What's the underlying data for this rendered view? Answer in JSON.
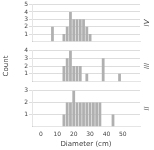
{
  "chart_data": [
    {
      "type": "bar",
      "title": "IV",
      "x": [
        7,
        14,
        16,
        18,
        20,
        22,
        24,
        26,
        28,
        30
      ],
      "values": [
        2,
        1,
        2,
        4,
        3,
        3,
        3,
        3,
        2,
        1
      ],
      "color": "#b0b0b0",
      "xlim": [
        0,
        55
      ],
      "xticks": [
        0,
        10,
        20,
        30,
        40,
        50
      ],
      "ylim": [
        0,
        5
      ],
      "yticks": [
        1,
        2,
        3,
        4,
        5
      ],
      "grid": true,
      "tick_labels": "y"
    },
    {
      "type": "bar",
      "title": "III",
      "ylabel": "Count",
      "x": [
        14,
        16,
        18,
        20,
        22,
        24,
        28,
        38,
        48
      ],
      "values": [
        2,
        3,
        4,
        2,
        2,
        2,
        1,
        3,
        1
      ],
      "color": "#b0b0b0",
      "xlim": [
        0,
        55
      ],
      "xticks": [
        0,
        10,
        20,
        30,
        40,
        50
      ],
      "ylim": [
        0,
        4
      ],
      "yticks": [
        1,
        2,
        3,
        4
      ],
      "grid": true,
      "tick_labels": "y"
    },
    {
      "type": "bar",
      "title": "II",
      "xlabel": "Diameter (cm)",
      "x": [
        14,
        16,
        18,
        20,
        22,
        24,
        26,
        28,
        30,
        32,
        34,
        36,
        44
      ],
      "values": [
        1,
        2,
        2,
        3,
        2,
        2,
        2,
        2,
        2,
        2,
        2,
        2,
        1
      ],
      "color": "#b0b0b0",
      "xlim": [
        0,
        55
      ],
      "xticks": [
        0,
        10,
        20,
        30,
        40,
        50
      ],
      "ylim": [
        0,
        3
      ],
      "yticks": [
        1,
        2,
        3
      ],
      "grid": true
    }
  ]
}
